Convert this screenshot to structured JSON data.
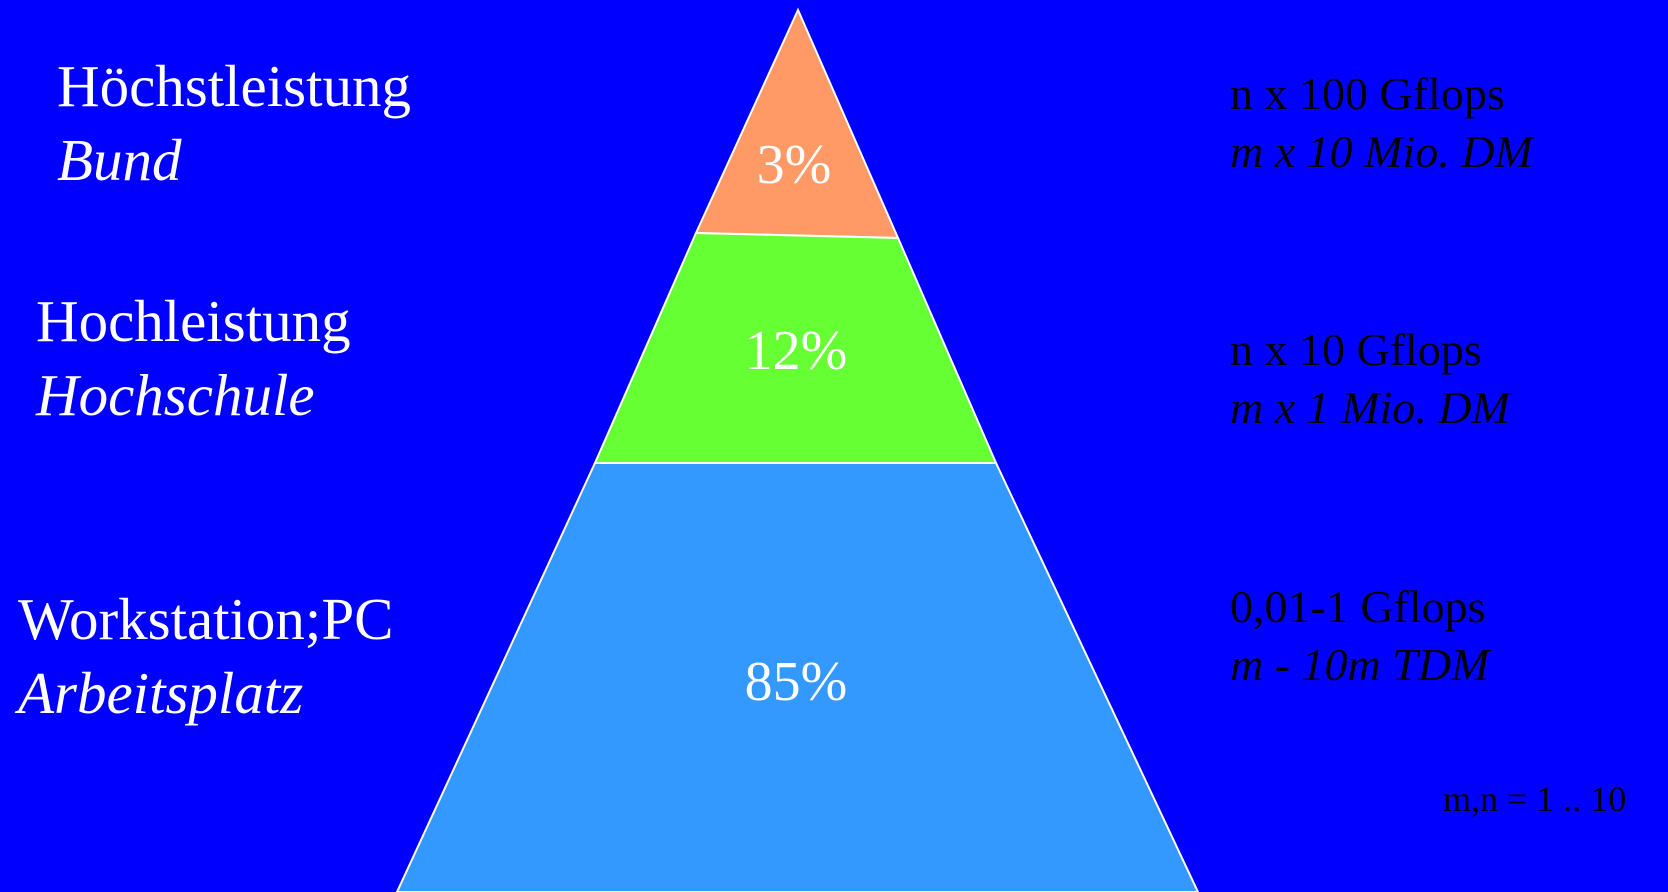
{
  "tiers": [
    {
      "level": "Höchstleistung",
      "sector": "Bund",
      "share_label": "3%",
      "share": 3,
      "performance": "n x 100 Gflops",
      "cost": "m x 10 Mio. DM",
      "color": "#ff9966"
    },
    {
      "level": "Hochleistung",
      "sector": "Hochschule",
      "share_label": "12%",
      "share": 12,
      "performance": "n x 10 Gflops",
      "cost": "m x 1 Mio. DM",
      "color": "#66ff33"
    },
    {
      "level": "Workstation;PC",
      "sector": "Arbeitsplatz",
      "share_label": "85%",
      "share": 85,
      "performance": "0,01-1 Gflops",
      "cost": "m - 10m TDM",
      "color": "#3399ff"
    }
  ],
  "note": "m,n = 1 .. 10",
  "colors": {
    "background": "#0000ff",
    "outline": "#ffffff",
    "label_text": "#ffffff",
    "annotation_text": "#000000"
  }
}
